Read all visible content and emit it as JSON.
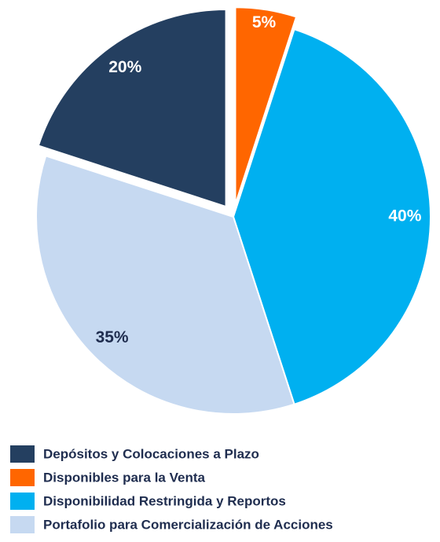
{
  "chart_data": {
    "type": "pie",
    "categories": [
      "Depósitos y Colocaciones a Plazo",
      "Disponibles para la Venta",
      "Disponibilidad Restringida y Reportos",
      "Portafolio para Comercialización de Acciones"
    ],
    "values": [
      20,
      5,
      40,
      35
    ],
    "value_labels": [
      "20%",
      "5%",
      "40%",
      "35%"
    ],
    "colors": [
      "#243f60",
      "#ff6600",
      "#00b0f0",
      "#c6d9f1"
    ],
    "exploded": [
      true,
      true,
      false,
      false
    ],
    "legend": "bottom"
  }
}
